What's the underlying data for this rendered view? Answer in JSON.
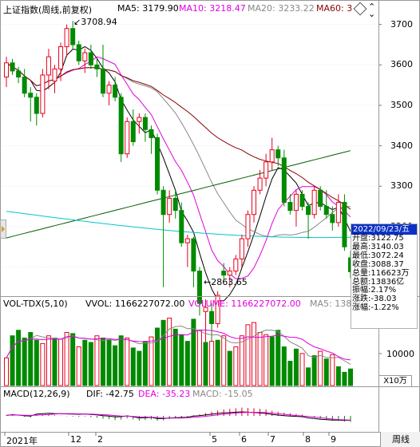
{
  "main_panel": {
    "title": "上证指数(周线,前复权)",
    "ma5": "MA5: 3179.90",
    "ma10": "MA10: 3218.47",
    "ma20": "MA20: 3233.22",
    "ma60": "MA60: 3",
    "y_ticks": [
      "3700",
      "3600",
      "3500",
      "3400",
      "3300",
      "3200",
      "3100"
    ],
    "high_label": "3708.94",
    "low_label": "2863.65"
  },
  "info_box": {
    "date": "2022/09/23/五",
    "rows": [
      {
        "label": "开盘",
        "value": "3122.75"
      },
      {
        "label": "最高",
        "value": "3140.03"
      },
      {
        "label": "最低",
        "value": "3072.24"
      },
      {
        "label": "收盘",
        "value": "3088.37"
      },
      {
        "label": "总量",
        "value": "116623万"
      },
      {
        "label": "总额",
        "value": "13836亿"
      },
      {
        "label": "振幅",
        "value": "2.17%"
      },
      {
        "label": "涨跌",
        "value": "-38.03"
      },
      {
        "label": "涨幅",
        "value": "-1.22%"
      }
    ]
  },
  "volume_panel": {
    "title": "VOL-TDX(5,10)",
    "vvol": "VVOL: 1166227072.00",
    "volume": "VOLUME: 1166227072.00",
    "ma5": "MA5: 138",
    "y_tick": "10000",
    "unit": "X10万"
  },
  "macd_panel": {
    "title": "MACD(12,26,9)",
    "dif": "DIF: -42.75",
    "dea": "DEA: -35.23",
    "macd": "MACD: -15.05"
  },
  "x_axis": {
    "labels": [
      "2021年",
      "12",
      "2",
      "5",
      "6",
      "7",
      "8",
      "9"
    ],
    "period_button": "周线"
  },
  "colors": {
    "up": "#e8001c",
    "down": "#008a00",
    "ma5": "#000000",
    "ma10": "#e000e0",
    "ma20": "#888888",
    "ma60": "#8b0000",
    "ma_long": "#005c00",
    "ma_cyan": "#00c8c8",
    "header": "#0b31c6"
  },
  "chart_data": {
    "type": "candlestick",
    "weeks": [
      {
        "o": 3570,
        "h": 3620,
        "l": 3545,
        "c": 3605
      },
      {
        "o": 3605,
        "h": 3615,
        "l": 3575,
        "c": 3585
      },
      {
        "o": 3585,
        "h": 3595,
        "l": 3555,
        "c": 3570
      },
      {
        "o": 3570,
        "h": 3590,
        "l": 3520,
        "c": 3530
      },
      {
        "o": 3530,
        "h": 3545,
        "l": 3460,
        "c": 3520
      },
      {
        "o": 3520,
        "h": 3530,
        "l": 3450,
        "c": 3480
      },
      {
        "o": 3480,
        "h": 3590,
        "l": 3470,
        "c": 3575
      },
      {
        "o": 3575,
        "h": 3640,
        "l": 3540,
        "c": 3620
      },
      {
        "o": 3560,
        "h": 3600,
        "l": 3530,
        "c": 3590
      },
      {
        "o": 3590,
        "h": 3655,
        "l": 3560,
        "c": 3645
      },
      {
        "o": 3645,
        "h": 3700,
        "l": 3620,
        "c": 3690
      },
      {
        "o": 3690,
        "h": 3708.94,
        "l": 3640,
        "c": 3650
      },
      {
        "o": 3650,
        "h": 3660,
        "l": 3600,
        "c": 3610
      },
      {
        "o": 3610,
        "h": 3640,
        "l": 3580,
        "c": 3630
      },
      {
        "o": 3630,
        "h": 3650,
        "l": 3590,
        "c": 3600
      },
      {
        "o": 3600,
        "h": 3615,
        "l": 3570,
        "c": 3590
      },
      {
        "o": 3590,
        "h": 3650,
        "l": 3520,
        "c": 3530
      },
      {
        "o": 3530,
        "h": 3560,
        "l": 3500,
        "c": 3550
      },
      {
        "o": 3550,
        "h": 3570,
        "l": 3510,
        "c": 3520
      },
      {
        "o": 3520,
        "h": 3530,
        "l": 3360,
        "c": 3380
      },
      {
        "o": 3380,
        "h": 3470,
        "l": 3370,
        "c": 3460
      },
      {
        "o": 3460,
        "h": 3490,
        "l": 3400,
        "c": 3410
      },
      {
        "o": 3460,
        "h": 3480,
        "l": 3430,
        "c": 3470
      },
      {
        "o": 3470,
        "h": 3480,
        "l": 3410,
        "c": 3440
      },
      {
        "o": 3440,
        "h": 3450,
        "l": 3380,
        "c": 3420
      },
      {
        "o": 3420,
        "h": 3430,
        "l": 3280,
        "c": 3290
      },
      {
        "o": 3290,
        "h": 3300,
        "l": 3050,
        "c": 3230
      },
      {
        "o": 3230,
        "h": 3290,
        "l": 3210,
        "c": 3270
      },
      {
        "o": 3270,
        "h": 3290,
        "l": 3220,
        "c": 3240
      },
      {
        "o": 3240,
        "h": 3260,
        "l": 3150,
        "c": 3160
      },
      {
        "o": 3160,
        "h": 3180,
        "l": 3100,
        "c": 3170
      },
      {
        "o": 3170,
        "h": 3175,
        "l": 3050,
        "c": 3090
      },
      {
        "o": 3090,
        "h": 3100,
        "l": 2980,
        "c": 3010
      },
      {
        "o": 2990,
        "h": 3020,
        "l": 2863.65,
        "c": 3000
      },
      {
        "o": 2990,
        "h": 3010,
        "l": 2900,
        "c": 2960
      },
      {
        "o": 2960,
        "h": 3040,
        "l": 2950,
        "c": 3030
      },
      {
        "o": 3090,
        "h": 3110,
        "l": 3070,
        "c": 3080
      },
      {
        "o": 3080,
        "h": 3100,
        "l": 3050,
        "c": 3090
      },
      {
        "o": 3090,
        "h": 3130,
        "l": 3080,
        "c": 3120
      },
      {
        "o": 3120,
        "h": 3180,
        "l": 3100,
        "c": 3170
      },
      {
        "o": 3170,
        "h": 3240,
        "l": 3150,
        "c": 3230
      },
      {
        "o": 3230,
        "h": 3300,
        "l": 3210,
        "c": 3290
      },
      {
        "o": 3290,
        "h": 3340,
        "l": 3280,
        "c": 3320
      },
      {
        "o": 3320,
        "h": 3380,
        "l": 3300,
        "c": 3360
      },
      {
        "o": 3360,
        "h": 3420,
        "l": 3340,
        "c": 3390
      },
      {
        "o": 3390,
        "h": 3400,
        "l": 3350,
        "c": 3370
      },
      {
        "o": 3370,
        "h": 3390,
        "l": 3250,
        "c": 3260
      },
      {
        "o": 3260,
        "h": 3280,
        "l": 3230,
        "c": 3240
      },
      {
        "o": 3240,
        "h": 3290,
        "l": 3200,
        "c": 3280
      },
      {
        "o": 3280,
        "h": 3290,
        "l": 3240,
        "c": 3250
      },
      {
        "o": 3250,
        "h": 3260,
        "l": 3170,
        "c": 3230
      },
      {
        "o": 3230,
        "h": 3300,
        "l": 3220,
        "c": 3290
      },
      {
        "o": 3290,
        "h": 3300,
        "l": 3240,
        "c": 3250
      },
      {
        "o": 3250,
        "h": 3290,
        "l": 3220,
        "c": 3230
      },
      {
        "o": 3230,
        "h": 3250,
        "l": 3190,
        "c": 3210
      },
      {
        "o": 3210,
        "h": 3280,
        "l": 3200,
        "c": 3260
      },
      {
        "o": 3260,
        "h": 3280,
        "l": 3140,
        "c": 3150
      },
      {
        "o": 3122.75,
        "h": 3140.03,
        "l": 3072.24,
        "c": 3088.37
      }
    ],
    "volume": [
      [
        1,
        1.2
      ],
      [
        0,
        1.4
      ],
      [
        0,
        1.45
      ],
      [
        0,
        1.38
      ],
      [
        0,
        1.43
      ],
      [
        0,
        1.36
      ],
      [
        1,
        1.33
      ],
      [
        1,
        1.4
      ],
      [
        0,
        1.38
      ],
      [
        1,
        1.37
      ],
      [
        1,
        1.43
      ],
      [
        0,
        1.42
      ],
      [
        1,
        1.3
      ],
      [
        0,
        1.36
      ],
      [
        0,
        1.34
      ],
      [
        1,
        1.4
      ],
      [
        0,
        1.38
      ],
      [
        0,
        1.36
      ],
      [
        0,
        1.31
      ],
      [
        0,
        1.4
      ],
      [
        1,
        1.38
      ],
      [
        0,
        1.29
      ],
      [
        0,
        1.26
      ],
      [
        0,
        1.35
      ],
      [
        1,
        1.39
      ],
      [
        0,
        1.47
      ],
      [
        0,
        1.54
      ],
      [
        1,
        1.56
      ],
      [
        0,
        1.46
      ],
      [
        0,
        1.41
      ],
      [
        0,
        1.35
      ],
      [
        0,
        1.55
      ],
      [
        1,
        1.45
      ],
      [
        0,
        1.34
      ],
      [
        1,
        1.35
      ],
      [
        0,
        1.36
      ],
      [
        1,
        1.4
      ],
      [
        0,
        1.26
      ],
      [
        1,
        1.3
      ],
      [
        1,
        1.4
      ],
      [
        1,
        1.5
      ],
      [
        1,
        1.52
      ],
      [
        1,
        1.43
      ],
      [
        1,
        1.41
      ],
      [
        0,
        1.39
      ],
      [
        0,
        1.45
      ],
      [
        0,
        1.3
      ],
      [
        0,
        1.17
      ],
      [
        0,
        1.28
      ],
      [
        1,
        1.24
      ],
      [
        0,
        1.11
      ],
      [
        0,
        1.22
      ],
      [
        1,
        1.26
      ],
      [
        0,
        1.19
      ],
      [
        1,
        1.23
      ],
      [
        0,
        1.12
      ],
      [
        0,
        1.07
      ],
      [
        0,
        1.1
      ]
    ],
    "macd_hist": [
      [
        1,
        0.2
      ],
      [
        1,
        0.4
      ],
      [
        1,
        0.1
      ],
      [
        0,
        0.3
      ],
      [
        0,
        0.5
      ],
      [
        1,
        0.2
      ],
      [
        1,
        0.3
      ],
      [
        1,
        0.4
      ],
      [
        1,
        0.2
      ],
      [
        1,
        0.1
      ],
      [
        0,
        0.1
      ],
      [
        0,
        0.2
      ],
      [
        0,
        0.3
      ],
      [
        0,
        0.2
      ],
      [
        0,
        0.4
      ],
      [
        0,
        0.6
      ],
      [
        0,
        0.9
      ],
      [
        0,
        1.0
      ],
      [
        0,
        1.3
      ],
      [
        0,
        1.2
      ],
      [
        0,
        0.8
      ],
      [
        0,
        1.1
      ],
      [
        0,
        1.5
      ],
      [
        0,
        1.3
      ],
      [
        0,
        1.1
      ],
      [
        0,
        1.5
      ],
      [
        0,
        1.4
      ],
      [
        0,
        1.0
      ],
      [
        0,
        0.8
      ],
      [
        0,
        0.6
      ],
      [
        0,
        0.4
      ],
      [
        1,
        0.2
      ],
      [
        1,
        0.5
      ],
      [
        1,
        0.9
      ],
      [
        1,
        1.3
      ],
      [
        1,
        1.7
      ],
      [
        1,
        2.0
      ],
      [
        1,
        2.2
      ],
      [
        1,
        2.4
      ],
      [
        1,
        2.6
      ],
      [
        1,
        2.5
      ],
      [
        1,
        2.4
      ],
      [
        1,
        2.2
      ],
      [
        1,
        2.0
      ],
      [
        1,
        1.6
      ],
      [
        1,
        1.3
      ],
      [
        1,
        1.0
      ],
      [
        1,
        0.8
      ],
      [
        1,
        0.6
      ],
      [
        1,
        0.4
      ],
      [
        0,
        0.2
      ],
      [
        0,
        0.5
      ],
      [
        0,
        0.9
      ],
      [
        0,
        1.2
      ],
      [
        0,
        1.5
      ],
      [
        0,
        1.6
      ],
      [
        0,
        1.8
      ],
      [
        0,
        1.9
      ]
    ],
    "y_range": [
      3030,
      3725
    ]
  }
}
